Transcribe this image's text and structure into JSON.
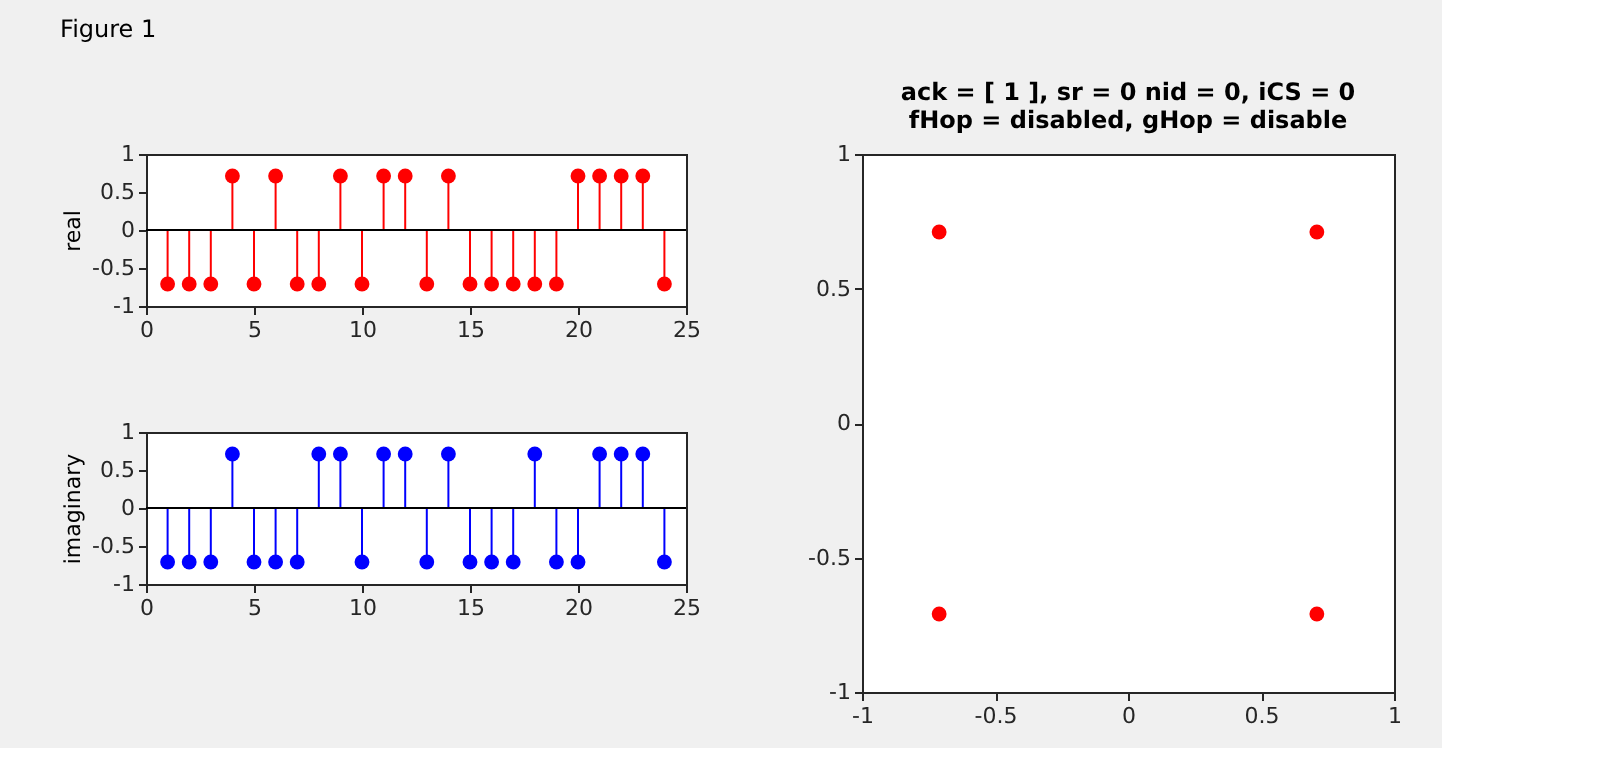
{
  "chart_data": [
    {
      "type": "lollipop",
      "ylabel": "real",
      "annotations": [
        "Figure 1"
      ],
      "x": [
        1,
        2,
        3,
        4,
        5,
        6,
        7,
        8,
        9,
        10,
        11,
        12,
        13,
        14,
        15,
        16,
        17,
        18,
        19,
        20,
        21,
        22,
        23,
        24
      ],
      "series": [
        {
          "color": "#ff0000",
          "values": [
            -0.71,
            -0.71,
            -0.71,
            0.71,
            -0.71,
            0.71,
            -0.71,
            -0.71,
            0.71,
            -0.71,
            0.71,
            0.71,
            -0.71,
            0.71,
            -0.71,
            -0.71,
            -0.71,
            -0.71,
            -0.71,
            0.71,
            0.71,
            0.71,
            0.71,
            -0.71
          ]
        }
      ],
      "ref_lines": [
        {
          "axis": "y",
          "value": 0,
          "color": "#000000"
        }
      ],
      "xlim": [
        0,
        25
      ],
      "xticks": [
        0,
        5,
        10,
        15,
        20,
        25
      ],
      "ylim": [
        -1,
        1
      ],
      "yticks": [
        -1,
        -0.5,
        0,
        0.5,
        1
      ],
      "marker": "circle",
      "grid": false
    },
    {
      "type": "lollipop",
      "ylabel": "imaginary",
      "x": [
        1,
        2,
        3,
        4,
        5,
        6,
        7,
        8,
        9,
        10,
        11,
        12,
        13,
        14,
        15,
        16,
        17,
        18,
        19,
        20,
        21,
        22,
        23,
        24
      ],
      "series": [
        {
          "color": "#0000ff",
          "values": [
            -0.71,
            -0.71,
            -0.71,
            0.71,
            -0.71,
            -0.71,
            -0.71,
            0.71,
            0.71,
            -0.71,
            0.71,
            0.71,
            -0.71,
            0.71,
            -0.71,
            -0.71,
            -0.71,
            0.71,
            -0.71,
            -0.71,
            0.71,
            0.71,
            0.71,
            -0.71
          ]
        }
      ],
      "ref_lines": [
        {
          "axis": "y",
          "value": 0,
          "color": "#000000"
        }
      ],
      "xlim": [
        0,
        25
      ],
      "xticks": [
        0,
        5,
        10,
        15,
        20,
        25
      ],
      "ylim": [
        -1,
        1
      ],
      "yticks": [
        -1,
        -0.5,
        0,
        0.5,
        1
      ],
      "marker": "circle",
      "grid": false
    },
    {
      "type": "scatter",
      "title": "ack = [ 1 ], sr = 0 nid = 0, iCS = 0\nfHop = disabled, gHop = disable",
      "x": [
        -0.71,
        0.71,
        -0.71,
        0.71
      ],
      "series": [
        {
          "color": "#ff0000",
          "values": [
            0.71,
            0.71,
            -0.71,
            -0.71
          ]
        }
      ],
      "xlim": [
        -1,
        1
      ],
      "xticks": [
        -1,
        -0.5,
        0,
        0.5,
        1
      ],
      "ylim": [
        -1,
        1
      ],
      "yticks": [
        -1,
        -0.5,
        0,
        0.5,
        1
      ],
      "marker": "circle",
      "grid": false
    }
  ]
}
